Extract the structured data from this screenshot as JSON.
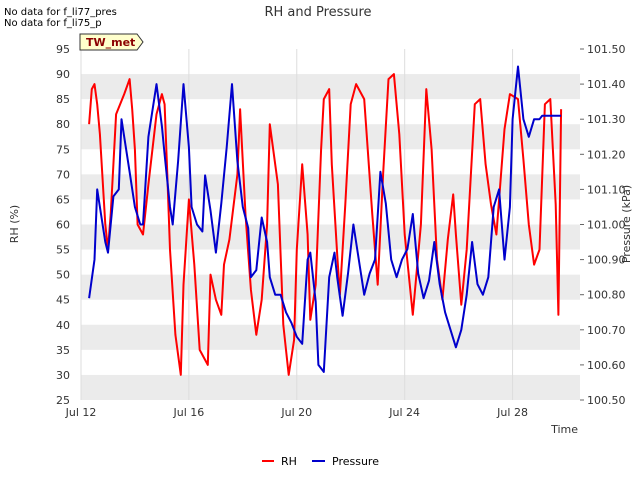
{
  "notes": [
    "No data for f_li77_pres",
    "No data for f_li75_p"
  ],
  "badge": "TW_met",
  "colors": {
    "rh": "#ff0000",
    "pressure": "#0000cc",
    "band": "#ebebeb",
    "badge_fill": "#ffffcc"
  },
  "chart_data": {
    "type": "line",
    "title": "RH and Pressure",
    "xlabel": "Time",
    "ylabel": "RH (%)",
    "y2label": "Pressure (kPa)",
    "x_ticks": [
      "Jul 12",
      "Jul 16",
      "Jul 20",
      "Jul 24",
      "Jul 28"
    ],
    "x_tick_days": [
      12,
      16,
      20,
      24,
      28
    ],
    "xlim": [
      12,
      30.5
    ],
    "ylim": [
      25,
      95
    ],
    "y_ticks": [
      25,
      30,
      35,
      40,
      45,
      50,
      55,
      60,
      65,
      70,
      75,
      80,
      85,
      90,
      95
    ],
    "y2lim": [
      100.5,
      101.5
    ],
    "y2_ticks": [
      "100.50",
      "100.60",
      "100.70",
      "100.80",
      "100.90",
      "101.00",
      "101.10",
      "101.20",
      "101.30",
      "101.40",
      "101.50"
    ],
    "grid": true,
    "legend_position": "bottom-center",
    "series": [
      {
        "name": "RH",
        "axis": "left",
        "color": "#ff0000",
        "x": [
          12.3,
          12.4,
          12.5,
          12.6,
          12.7,
          12.9,
          13.0,
          13.1,
          13.3,
          13.6,
          13.8,
          13.9,
          14.0,
          14.1,
          14.3,
          14.5,
          14.8,
          15.0,
          15.1,
          15.2,
          15.3,
          15.5,
          15.7,
          15.8,
          16.0,
          16.2,
          16.4,
          16.7,
          16.8,
          17.0,
          17.2,
          17.3,
          17.5,
          17.8,
          17.9,
          18.1,
          18.3,
          18.5,
          18.7,
          18.9,
          19.0,
          19.3,
          19.5,
          19.7,
          19.9,
          20.0,
          20.2,
          20.4,
          20.5,
          20.7,
          20.9,
          21.0,
          21.2,
          21.3,
          21.5,
          21.6,
          21.8,
          22.0,
          22.2,
          22.5,
          22.8,
          23.0,
          23.2,
          23.4,
          23.6,
          23.8,
          24.0,
          24.3,
          24.6,
          24.8,
          25.0,
          25.2,
          25.4,
          25.6,
          25.8,
          25.9,
          26.1,
          26.3,
          26.6,
          26.8,
          27.0,
          27.2,
          27.4,
          27.7,
          27.9,
          28.2,
          28.4,
          28.6,
          28.8,
          29.0,
          29.2,
          29.4,
          29.6,
          29.7,
          29.8
        ],
        "y": [
          80,
          87,
          88,
          84,
          78,
          60,
          55,
          62,
          82,
          86,
          89,
          83,
          75,
          60,
          58,
          68,
          82,
          86,
          84,
          70,
          55,
          38,
          30,
          48,
          65,
          52,
          35,
          32,
          50,
          45,
          42,
          52,
          57,
          70,
          83,
          62,
          47,
          38,
          45,
          60,
          80,
          68,
          40,
          30,
          37,
          55,
          72,
          58,
          41,
          48,
          75,
          85,
          87,
          72,
          54,
          46,
          64,
          84,
          88,
          85,
          62,
          48,
          70,
          89,
          90,
          78,
          58,
          42,
          60,
          87,
          75,
          53,
          45,
          57,
          66,
          58,
          44,
          55,
          84,
          85,
          72,
          64,
          58,
          79,
          86,
          85,
          73,
          60,
          52,
          55,
          84,
          85,
          64,
          42,
          83
        ]
      },
      {
        "name": "Pressure",
        "axis": "right",
        "color": "#0000cc",
        "x": [
          12.3,
          12.5,
          12.6,
          12.8,
          12.9,
          13.0,
          13.2,
          13.4,
          13.5,
          13.6,
          13.8,
          14.0,
          14.2,
          14.3,
          14.5,
          14.8,
          15.0,
          15.1,
          15.3,
          15.4,
          15.6,
          15.8,
          16.0,
          16.1,
          16.3,
          16.5,
          16.6,
          16.8,
          17.0,
          17.2,
          17.4,
          17.6,
          17.8,
          18.0,
          18.2,
          18.3,
          18.5,
          18.7,
          18.9,
          19.0,
          19.2,
          19.4,
          19.6,
          19.8,
          20.0,
          20.2,
          20.4,
          20.5,
          20.7,
          20.8,
          21.0,
          21.2,
          21.4,
          21.5,
          21.7,
          21.9,
          22.1,
          22.3,
          22.5,
          22.7,
          22.9,
          23.1,
          23.3,
          23.5,
          23.7,
          23.9,
          24.1,
          24.3,
          24.5,
          24.7,
          24.9,
          25.1,
          25.3,
          25.5,
          25.7,
          25.9,
          26.1,
          26.3,
          26.5,
          26.7,
          26.9,
          27.1,
          27.3,
          27.5,
          27.7,
          27.9,
          28.0,
          28.2,
          28.4,
          28.6,
          28.8,
          29.0,
          29.1,
          29.3,
          29.5,
          29.7,
          29.8
        ],
        "y": [
          100.79,
          100.9,
          101.1,
          101.0,
          100.95,
          100.92,
          101.08,
          101.1,
          101.3,
          101.25,
          101.15,
          101.05,
          101.0,
          101.0,
          101.25,
          101.4,
          101.28,
          101.2,
          101.05,
          101.0,
          101.18,
          101.4,
          101.22,
          101.05,
          101.0,
          100.98,
          101.14,
          101.04,
          100.92,
          101.06,
          101.22,
          101.4,
          101.18,
          101.05,
          100.99,
          100.85,
          100.87,
          101.02,
          100.95,
          100.85,
          100.8,
          100.8,
          100.75,
          100.72,
          100.68,
          100.66,
          100.9,
          100.92,
          100.78,
          100.6,
          100.58,
          100.85,
          100.92,
          100.85,
          100.74,
          100.86,
          101.0,
          100.9,
          100.8,
          100.86,
          100.9,
          101.15,
          101.06,
          100.9,
          100.85,
          100.9,
          100.93,
          101.03,
          100.86,
          100.79,
          100.84,
          100.95,
          100.83,
          100.75,
          100.7,
          100.65,
          100.7,
          100.8,
          100.95,
          100.83,
          100.8,
          100.85,
          101.05,
          101.1,
          100.9,
          101.05,
          101.3,
          101.45,
          101.3,
          101.25,
          101.3,
          101.3,
          101.31,
          101.31,
          101.31,
          101.31,
          101.31
        ]
      }
    ]
  }
}
